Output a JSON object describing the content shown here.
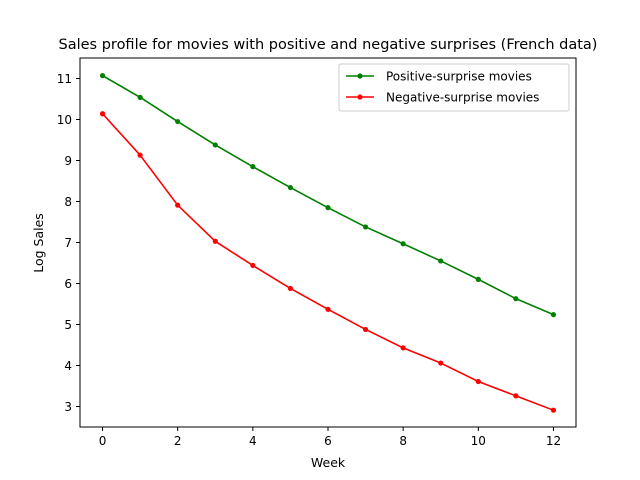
{
  "chart_data": {
    "type": "line",
    "title": "Sales profile for movies with positive and negative surprises (French data)",
    "xlabel": "Week",
    "ylabel": "Log Sales",
    "xlim": [
      -0.6,
      12.6
    ],
    "ylim": [
      2.5,
      11.5
    ],
    "xticks": [
      0,
      2,
      4,
      6,
      8,
      10,
      12
    ],
    "yticks": [
      3,
      4,
      5,
      6,
      7,
      8,
      9,
      10,
      11
    ],
    "grid": false,
    "legend_position": "top-right",
    "x": [
      0,
      1,
      2,
      3,
      4,
      5,
      6,
      7,
      8,
      9,
      10,
      11,
      12
    ],
    "series": [
      {
        "name": "Positive-surprise movies",
        "color": "#008000",
        "values": [
          11.07,
          10.54,
          9.95,
          9.38,
          8.85,
          8.34,
          7.85,
          7.38,
          6.97,
          6.55,
          6.1,
          5.63,
          5.24
        ]
      },
      {
        "name": "Negative-surprise movies",
        "color": "#ff0000",
        "values": [
          10.14,
          9.13,
          7.91,
          7.03,
          6.44,
          5.88,
          5.37,
          4.88,
          4.43,
          4.06,
          3.61,
          3.26,
          2.91
        ]
      }
    ]
  }
}
